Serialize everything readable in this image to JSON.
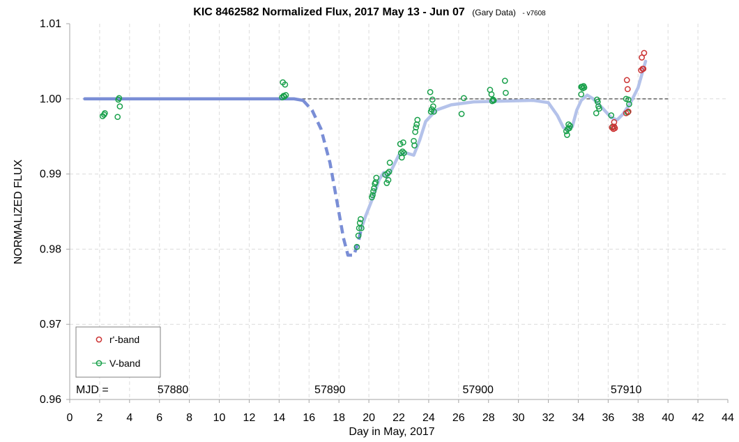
{
  "chart_data": {
    "type": "scatter",
    "title": {
      "main": "KIC 8462582 Normalized Flux, 2017 May 13 - Jun 07",
      "source": "(Gary Data)",
      "version": "- v7608"
    },
    "xlabel": "Day in May, 2017",
    "ylabel": "NORMALIZED FLUX",
    "xlim": [
      0,
      44
    ],
    "ylim": [
      0.96,
      1.01
    ],
    "x_ticks": [
      0,
      2,
      4,
      6,
      8,
      10,
      12,
      14,
      16,
      18,
      20,
      22,
      24,
      26,
      28,
      30,
      32,
      34,
      36,
      38,
      40,
      42,
      44
    ],
    "y_ticks": [
      {
        "value": 0.96,
        "label": "0.96"
      },
      {
        "value": 0.97,
        "label": "0.97"
      },
      {
        "value": 0.98,
        "label": "0.98"
      },
      {
        "value": 0.99,
        "label": "0.99"
      },
      {
        "value": 1.0,
        "label": "1.00"
      },
      {
        "value": 1.01,
        "label": "1.01"
      }
    ],
    "grid": true,
    "mjd_row": {
      "label": "MJD =",
      "y": 0.9613,
      "ticks": [
        {
          "x": 6.9,
          "label": "57880"
        },
        {
          "x": 17.4,
          "label": "57890"
        },
        {
          "x": 27.3,
          "label": "57900"
        },
        {
          "x": 37.2,
          "label": "57910"
        }
      ]
    },
    "reference_line": {
      "y": 1.0,
      "x_range": [
        1,
        40
      ],
      "style": "dashed",
      "color": "#555555"
    },
    "legend": {
      "placement": "bottom-left",
      "entries": [
        {
          "label": "r'-band",
          "color": "#cc3333"
        },
        {
          "label": "V-band",
          "color": "#18a04a"
        }
      ]
    },
    "model_curve": {
      "solid_color": "#b4c2ea",
      "dashed_color": "#7a8ed6",
      "points_pre": [
        [
          1,
          1.0
        ],
        [
          15.0,
          1.0
        ],
        [
          15.6,
          0.9998
        ]
      ],
      "points_dip": [
        [
          15.6,
          0.9998
        ],
        [
          16.2,
          0.9985
        ],
        [
          16.8,
          0.996
        ],
        [
          17.4,
          0.9915
        ],
        [
          17.9,
          0.986
        ],
        [
          18.3,
          0.9815
        ],
        [
          18.6,
          0.9792
        ],
        [
          19.0,
          0.9792
        ],
        [
          19.3,
          0.981
        ],
        [
          19.5,
          0.9828
        ]
      ],
      "points_post": [
        [
          19.5,
          0.9828
        ],
        [
          19.8,
          0.9845
        ],
        [
          20.3,
          0.987
        ],
        [
          20.7,
          0.9893
        ],
        [
          21.0,
          0.9902
        ],
        [
          21.2,
          0.9895
        ],
        [
          21.5,
          0.9905
        ],
        [
          22.0,
          0.9925
        ],
        [
          22.5,
          0.9928
        ],
        [
          23.0,
          0.9925
        ],
        [
          23.4,
          0.9945
        ],
        [
          23.8,
          0.997
        ],
        [
          24.5,
          0.9985
        ],
        [
          25.5,
          0.9992
        ],
        [
          27.0,
          0.9996
        ],
        [
          29.0,
          0.9997
        ],
        [
          31.0,
          0.9998
        ],
        [
          32.0,
          0.9995
        ],
        [
          32.6,
          0.9978
        ],
        [
          33.0,
          0.9962
        ],
        [
          33.3,
          0.9958
        ],
        [
          33.6,
          0.9963
        ],
        [
          33.9,
          0.9985
        ],
        [
          34.2,
          0.9998
        ],
        [
          34.6,
          1.0005
        ],
        [
          35.0,
          1.0
        ],
        [
          35.6,
          0.9988
        ],
        [
          36.2,
          0.9975
        ],
        [
          36.6,
          0.9972
        ],
        [
          37.0,
          0.998
        ],
        [
          37.5,
          0.9995
        ],
        [
          38.0,
          1.0015
        ],
        [
          38.5,
          1.005
        ]
      ]
    },
    "series": [
      {
        "name": "V-band",
        "marker": "open-circle",
        "color": "#18a04a",
        "points": [
          [
            2.2,
            0.9977
          ],
          [
            2.3,
            0.9979
          ],
          [
            2.35,
            0.9981
          ],
          [
            3.2,
            0.9976
          ],
          [
            3.25,
            0.9999
          ],
          [
            3.3,
            1.0001
          ],
          [
            3.35,
            0.999
          ],
          [
            14.2,
            1.0002
          ],
          [
            14.25,
            1.0022
          ],
          [
            14.3,
            1.0004
          ],
          [
            14.35,
            1.0003
          ],
          [
            14.4,
            1.0019
          ],
          [
            14.45,
            1.0005
          ],
          [
            19.2,
            0.9803
          ],
          [
            19.3,
            0.9818
          ],
          [
            19.35,
            0.9828
          ],
          [
            19.4,
            0.9835
          ],
          [
            19.45,
            0.984
          ],
          [
            19.5,
            0.9828
          ],
          [
            20.2,
            0.9869
          ],
          [
            20.25,
            0.9872
          ],
          [
            20.3,
            0.9877
          ],
          [
            20.35,
            0.9881
          ],
          [
            20.4,
            0.9887
          ],
          [
            20.45,
            0.9889
          ],
          [
            20.5,
            0.9895
          ],
          [
            21.1,
            0.9899
          ],
          [
            21.2,
            0.9888
          ],
          [
            21.25,
            0.9901
          ],
          [
            21.3,
            0.9892
          ],
          [
            21.35,
            0.9903
          ],
          [
            21.4,
            0.9915
          ],
          [
            22.1,
            0.994
          ],
          [
            22.15,
            0.9928
          ],
          [
            22.2,
            0.9922
          ],
          [
            22.25,
            0.993
          ],
          [
            22.3,
            0.9942
          ],
          [
            22.35,
            0.9928
          ],
          [
            23.0,
            0.9944
          ],
          [
            23.05,
            0.9938
          ],
          [
            23.1,
            0.9956
          ],
          [
            23.15,
            0.9962
          ],
          [
            23.2,
            0.9966
          ],
          [
            23.25,
            0.9972
          ],
          [
            24.1,
            1.0009
          ],
          [
            24.15,
            0.9983
          ],
          [
            24.2,
            0.9986
          ],
          [
            24.25,
            0.9999
          ],
          [
            24.3,
            0.999
          ],
          [
            24.35,
            0.9983
          ],
          [
            26.2,
            0.998
          ],
          [
            26.35,
            1.0001
          ],
          [
            28.1,
            1.0012
          ],
          [
            28.2,
            1.0006
          ],
          [
            28.25,
            0.9997
          ],
          [
            28.3,
            0.9999
          ],
          [
            28.35,
            0.9998
          ],
          [
            29.1,
            1.0024
          ],
          [
            29.15,
            1.0008
          ],
          [
            33.2,
            0.9957
          ],
          [
            33.25,
            0.9952
          ],
          [
            33.3,
            0.996
          ],
          [
            33.35,
            0.9966
          ],
          [
            33.4,
            0.9961
          ],
          [
            33.45,
            0.9964
          ],
          [
            34.2,
            1.0016
          ],
          [
            34.25,
            1.0016
          ],
          [
            34.3,
            1.0014
          ],
          [
            34.35,
            1.0017
          ],
          [
            34.4,
            1.0015
          ],
          [
            34.2,
            1.0006
          ],
          [
            35.2,
            0.9981
          ],
          [
            35.25,
            0.9999
          ],
          [
            35.3,
            0.9996
          ],
          [
            35.35,
            0.999
          ],
          [
            35.4,
            0.9987
          ],
          [
            36.2,
            0.9978
          ],
          [
            36.3,
            0.9963
          ],
          [
            37.2,
            1.0
          ],
          [
            37.3,
            0.9982
          ],
          [
            37.35,
            0.9999
          ],
          [
            37.4,
            0.9993
          ]
        ]
      },
      {
        "name": "r'-band",
        "marker": "open-circle",
        "color": "#cc3333",
        "points": [
          [
            36.25,
            0.9962
          ],
          [
            36.35,
            0.996
          ],
          [
            36.4,
            0.9963
          ],
          [
            36.45,
            0.9961
          ],
          [
            36.4,
            0.9969
          ],
          [
            37.2,
            0.9981
          ],
          [
            37.25,
            1.0025
          ],
          [
            37.3,
            1.0013
          ],
          [
            37.35,
            0.9983
          ],
          [
            38.2,
            1.0038
          ],
          [
            38.25,
            1.0055
          ],
          [
            38.3,
            1.004
          ],
          [
            38.35,
            1.004
          ],
          [
            38.4,
            1.0061
          ]
        ]
      }
    ]
  }
}
